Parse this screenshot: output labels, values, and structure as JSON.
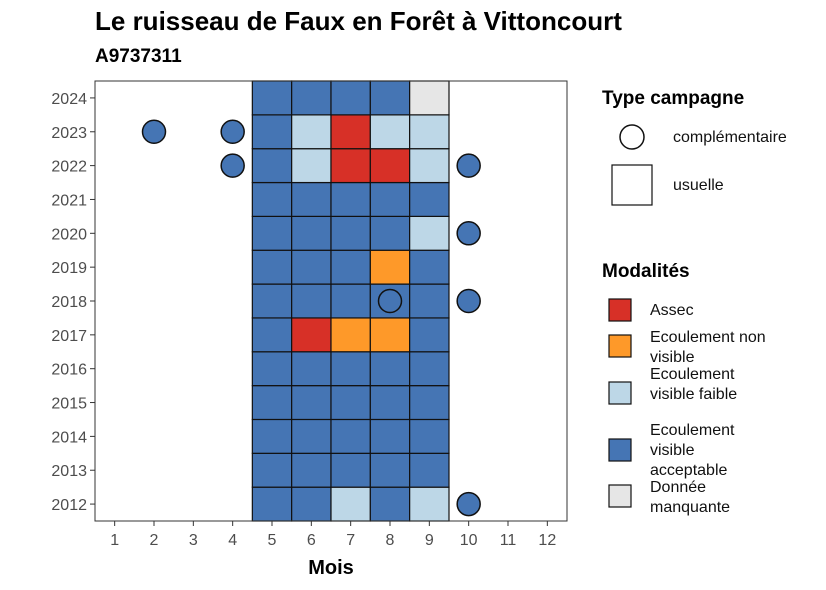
{
  "chart_data": {
    "type": "heatmap",
    "title": "Le ruisseau de Faux en Forêt à Vittoncourt",
    "subtitle": "A9737311",
    "xlabel": "Mois",
    "ylabel": "",
    "x_ticks": [
      1,
      2,
      3,
      4,
      5,
      6,
      7,
      8,
      9,
      10,
      11,
      12
    ],
    "y_ticks": [
      2012,
      2013,
      2014,
      2015,
      2016,
      2017,
      2018,
      2019,
      2020,
      2021,
      2022,
      2023,
      2024
    ],
    "xlim": [
      0.5,
      12.5
    ],
    "ylim": [
      2011.5,
      2024.5
    ],
    "grid": false,
    "legend_position": "right",
    "legend_campaign": {
      "title": "Type campagne",
      "items": [
        {
          "label": "complémentaire",
          "shape": "circle"
        },
        {
          "label": "usuelle",
          "shape": "square"
        }
      ]
    },
    "legend_modalities": {
      "title": "Modalités",
      "items": [
        {
          "key": "assec",
          "label": "Assec",
          "color": "#d73027"
        },
        {
          "key": "nonvisible",
          "label": "Ecoulement non visible",
          "color": "#fe9929"
        },
        {
          "key": "faible",
          "label": "Ecoulement visible faible",
          "color": "#bdd7e7"
        },
        {
          "key": "acceptable",
          "label": "Ecoulement visible acceptable",
          "color": "#4575b4"
        },
        {
          "key": "manquante",
          "label": "Donnée manquante",
          "color": "#e6e6e6"
        }
      ]
    },
    "usual_campaign": [
      {
        "year": 2012,
        "values": [
          "acceptable",
          "acceptable",
          "faible",
          "acceptable",
          "faible"
        ]
      },
      {
        "year": 2013,
        "values": [
          "acceptable",
          "acceptable",
          "acceptable",
          "acceptable",
          "acceptable"
        ]
      },
      {
        "year": 2014,
        "values": [
          "acceptable",
          "acceptable",
          "acceptable",
          "acceptable",
          "acceptable"
        ]
      },
      {
        "year": 2015,
        "values": [
          "acceptable",
          "acceptable",
          "acceptable",
          "acceptable",
          "acceptable"
        ]
      },
      {
        "year": 2016,
        "values": [
          "acceptable",
          "acceptable",
          "acceptable",
          "acceptable",
          "acceptable"
        ]
      },
      {
        "year": 2017,
        "values": [
          "acceptable",
          "assec",
          "nonvisible",
          "nonvisible",
          "acceptable"
        ]
      },
      {
        "year": 2018,
        "values": [
          "acceptable",
          "acceptable",
          "acceptable",
          "acceptable",
          "acceptable"
        ]
      },
      {
        "year": 2019,
        "values": [
          "acceptable",
          "acceptable",
          "acceptable",
          "nonvisible",
          "acceptable"
        ]
      },
      {
        "year": 2020,
        "values": [
          "acceptable",
          "acceptable",
          "acceptable",
          "acceptable",
          "faible"
        ]
      },
      {
        "year": 2021,
        "values": [
          "acceptable",
          "acceptable",
          "acceptable",
          "acceptable",
          "acceptable"
        ]
      },
      {
        "year": 2022,
        "values": [
          "acceptable",
          "faible",
          "assec",
          "assec",
          "faible"
        ]
      },
      {
        "year": 2023,
        "values": [
          "acceptable",
          "faible",
          "assec",
          "faible",
          "faible"
        ]
      },
      {
        "year": 2024,
        "values": [
          "acceptable",
          "acceptable",
          "acceptable",
          "acceptable",
          "manquante"
        ]
      }
    ],
    "usual_months": [
      5,
      6,
      7,
      8,
      9
    ],
    "complementary_campaign": [
      {
        "year": 2023,
        "month": 2,
        "value": "acceptable"
      },
      {
        "year": 2023,
        "month": 4,
        "value": "acceptable"
      },
      {
        "year": 2022,
        "month": 4,
        "value": "acceptable"
      },
      {
        "year": 2022,
        "month": 10,
        "value": "acceptable"
      },
      {
        "year": 2020,
        "month": 10,
        "value": "acceptable"
      },
      {
        "year": 2018,
        "month": 8,
        "value": "acceptable"
      },
      {
        "year": 2018,
        "month": 10,
        "value": "acceptable"
      },
      {
        "year": 2012,
        "month": 10,
        "value": "acceptable"
      }
    ]
  }
}
